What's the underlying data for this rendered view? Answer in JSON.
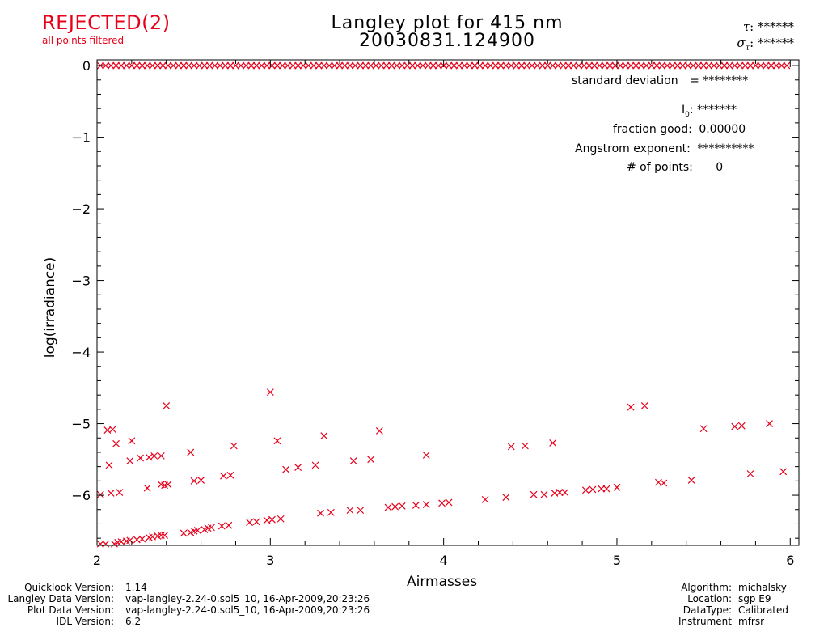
{
  "header": {
    "status": "REJECTED(2)",
    "status_sub": "all points filtered",
    "title_line1": "Langley plot for 415 nm",
    "title_line2": "20030831.124900",
    "tau_label": "τ",
    "tau_value": ": ******",
    "sigma_label": "σ",
    "sigma_sub": "τ",
    "sigma_value": ": ******"
  },
  "stats": {
    "stddev_label": "standard deviation",
    "stddev_value": "= ********",
    "i0_label": "I",
    "i0_sub": "0",
    "i0_value": ": *******",
    "fraction_label": "fraction good:",
    "fraction_value": "0.00000",
    "angstrom_label": "Angstrom exponent:",
    "angstrom_value": "**********",
    "npoints_label": "# of points:",
    "npoints_value": "0"
  },
  "footer": {
    "left": [
      {
        "label": "Quicklook Version:",
        "value": "1.14"
      },
      {
        "label": "Langley Data Version:",
        "value": "vap-langley-2.24-0.sol5_10, 16-Apr-2009,20:23:26"
      },
      {
        "label": "Plot Data Version:",
        "value": "vap-langley-2.24-0.sol5_10, 16-Apr-2009,20:23:26"
      },
      {
        "label": "IDL Version:",
        "value": "6.2"
      }
    ],
    "right": [
      {
        "label": "Algorithm:",
        "value": "michalsky"
      },
      {
        "label": "Location:",
        "value": "sgp E9"
      },
      {
        "label": "DataType:",
        "value": "Calibrated"
      },
      {
        "label": "Instrument",
        "value": "mfrsr"
      }
    ]
  },
  "colors": {
    "marker": "#e8001a",
    "status": "#e8001a",
    "axis": "#000000"
  },
  "chart_data": {
    "type": "scatter",
    "title": "Langley plot for 415 nm",
    "subtitle": "20030831.124900",
    "xlabel": "Airmasses",
    "ylabel": "log(irradiance)",
    "xlim": [
      2,
      6.05
    ],
    "ylim": [
      -6.7,
      0.08
    ],
    "xticks": [
      2,
      3,
      4,
      5,
      6
    ],
    "yticks": [
      0,
      -1,
      -2,
      -3,
      -4,
      -5,
      -6
    ],
    "xtick_labels": [
      "2",
      "3",
      "4",
      "5",
      "6"
    ],
    "ytick_labels": [
      "0",
      "−1",
      "−2",
      "−3",
      "−4",
      "−5",
      "−6"
    ],
    "grid": false,
    "marker": "x",
    "series": [
      {
        "points": [
          [
            2.02,
            -6.68
          ],
          [
            2.05,
            -6.68
          ],
          [
            2.1,
            -6.68
          ],
          [
            2.12,
            -6.66
          ],
          [
            2.14,
            -6.65
          ],
          [
            2.17,
            -6.64
          ],
          [
            2.19,
            -6.63
          ],
          [
            2.23,
            -6.62
          ],
          [
            2.26,
            -6.61
          ],
          [
            2.3,
            -6.59
          ],
          [
            2.32,
            -6.58
          ],
          [
            2.35,
            -6.57
          ],
          [
            2.37,
            -6.56
          ],
          [
            2.39,
            -6.56
          ],
          [
            2.5,
            -6.53
          ],
          [
            2.54,
            -6.52
          ],
          [
            2.56,
            -6.5
          ],
          [
            2.58,
            -6.49
          ],
          [
            2.62,
            -6.48
          ],
          [
            2.64,
            -6.46
          ],
          [
            2.66,
            -6.45
          ],
          [
            2.72,
            -6.43
          ],
          [
            2.76,
            -6.42
          ],
          [
            2.88,
            -6.38
          ],
          [
            2.92,
            -6.37
          ],
          [
            2.98,
            -6.35
          ],
          [
            3.01,
            -6.34
          ],
          [
            3.06,
            -6.33
          ],
          [
            3.29,
            -6.25
          ],
          [
            3.35,
            -6.24
          ],
          [
            3.46,
            -6.21
          ],
          [
            3.52,
            -6.21
          ],
          [
            3.68,
            -6.17
          ],
          [
            3.72,
            -6.16
          ],
          [
            3.76,
            -6.15
          ],
          [
            3.84,
            -6.14
          ],
          [
            3.9,
            -6.13
          ],
          [
            3.99,
            -6.11
          ],
          [
            4.03,
            -6.1
          ],
          [
            4.24,
            -6.06
          ],
          [
            4.36,
            -6.03
          ],
          [
            4.52,
            -5.99
          ],
          [
            4.58,
            -5.99
          ],
          [
            4.64,
            -5.97
          ],
          [
            4.67,
            -5.96
          ],
          [
            4.7,
            -5.96
          ],
          [
            4.82,
            -5.93
          ],
          [
            4.86,
            -5.92
          ],
          [
            4.91,
            -5.91
          ],
          [
            4.94,
            -5.91
          ],
          [
            5.0,
            -5.89
          ],
          [
            5.24,
            -5.82
          ],
          [
            5.27,
            -5.83
          ],
          [
            5.43,
            -5.79
          ],
          [
            5.77,
            -5.7
          ],
          [
            5.96,
            -5.67
          ],
          [
            2.02,
            -5.99
          ],
          [
            2.08,
            -5.97
          ],
          [
            2.13,
            -5.96
          ],
          [
            2.29,
            -5.9
          ],
          [
            2.37,
            -5.85
          ],
          [
            2.39,
            -5.86
          ],
          [
            2.41,
            -5.85
          ],
          [
            2.56,
            -5.8
          ],
          [
            2.6,
            -5.79
          ],
          [
            2.73,
            -5.73
          ],
          [
            2.77,
            -5.72
          ],
          [
            2.07,
            -5.58
          ],
          [
            2.11,
            -5.28
          ],
          [
            2.19,
            -5.52
          ],
          [
            2.2,
            -5.24
          ],
          [
            2.25,
            -5.48
          ],
          [
            2.3,
            -5.47
          ],
          [
            2.33,
            -5.45
          ],
          [
            2.37,
            -5.45
          ],
          [
            2.4,
            -4.75
          ],
          [
            2.54,
            -5.4
          ],
          [
            2.79,
            -5.31
          ],
          [
            3.0,
            -4.56
          ],
          [
            3.04,
            -5.24
          ],
          [
            3.09,
            -5.64
          ],
          [
            3.16,
            -5.61
          ],
          [
            3.26,
            -5.58
          ],
          [
            3.31,
            -5.17
          ],
          [
            3.48,
            -5.52
          ],
          [
            3.58,
            -5.5
          ],
          [
            3.63,
            -5.1
          ],
          [
            3.9,
            -5.44
          ],
          [
            4.39,
            -5.32
          ],
          [
            4.47,
            -5.31
          ],
          [
            4.63,
            -5.27
          ],
          [
            5.08,
            -4.77
          ],
          [
            5.16,
            -4.75
          ],
          [
            5.5,
            -5.07
          ],
          [
            5.68,
            -5.04
          ],
          [
            5.72,
            -5.03
          ],
          [
            5.88,
            -5.0
          ],
          [
            2.06,
            -5.09
          ],
          [
            2.09,
            -5.08
          ]
        ]
      }
    ]
  }
}
